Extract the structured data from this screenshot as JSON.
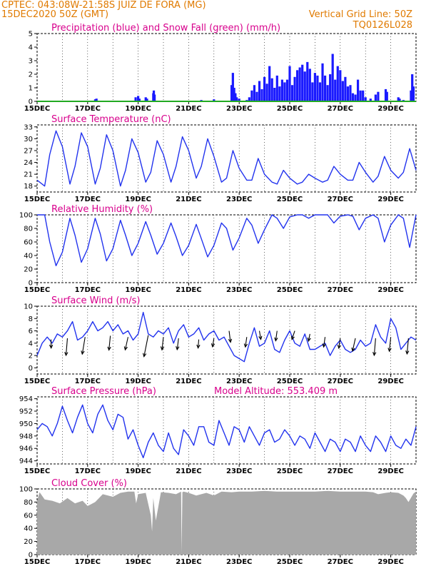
{
  "header": {
    "line1": "CPTEC:  043:08W-21:58S  JUIZ DE FORA (MG)",
    "line2": "15DEC2020 50Z (GMT)",
    "grid_note": "Vertical Grid Line: 50Z",
    "code": "TQ0126L028"
  },
  "colors": {
    "header": "#e07a00",
    "title": "#d8008c",
    "precip": "#1a1aff",
    "snow": "#22aa22",
    "line": "#2233ee",
    "arrow": "#000000",
    "cloud": "#a8a8a8"
  },
  "x_tick_labels": [
    "15DEC",
    "17DEC",
    "19DEC",
    "21DEC",
    "23DEC",
    "25DEC",
    "27DEC",
    "29DEC"
  ],
  "chart_data": [
    {
      "type": "bar",
      "title": "Precipitation (blue) and Snow Fall (green) (mm/h)",
      "ylim": [
        0,
        5
      ],
      "yticks": [
        0,
        1,
        2,
        3,
        4,
        5
      ],
      "x_range_days": [
        15,
        30
      ],
      "series": [
        {
          "name": "Precipitation",
          "x": [
            17.3,
            17.35,
            18.9,
            19.0,
            19.05,
            19.3,
            19.35,
            19.6,
            19.62,
            19.65,
            21.5,
            22.0,
            22.7,
            22.75,
            22.8,
            22.85,
            22.9,
            23.0,
            23.3,
            23.4,
            23.5,
            23.6,
            23.7,
            23.8,
            23.9,
            24.0,
            24.1,
            24.2,
            24.3,
            24.4,
            24.5,
            24.6,
            24.7,
            24.8,
            24.9,
            25.0,
            25.1,
            25.2,
            25.3,
            25.4,
            25.5,
            25.6,
            25.7,
            25.8,
            25.9,
            26.0,
            26.1,
            26.2,
            26.3,
            26.4,
            26.5,
            26.6,
            26.7,
            26.8,
            26.9,
            27.0,
            27.1,
            27.2,
            27.3,
            27.4,
            27.5,
            27.6,
            27.7,
            27.8,
            27.9,
            28.0,
            28.2,
            28.4,
            28.5,
            28.8,
            28.85,
            29.3,
            29.35,
            29.5,
            29.8,
            29.85,
            29.9
          ],
          "values": [
            0.15,
            0.2,
            0.3,
            0.4,
            0.2,
            0.3,
            0.2,
            0.6,
            0.8,
            0.5,
            0.1,
            0.15,
            1.2,
            2.1,
            1.0,
            0.6,
            0.3,
            0.2,
            0.1,
            0.3,
            0.8,
            1.2,
            0.7,
            1.5,
            0.9,
            1.8,
            1.3,
            2.6,
            1.7,
            1.0,
            1.9,
            1.1,
            1.6,
            1.4,
            1.6,
            2.6,
            1.2,
            1.8,
            2.3,
            2.5,
            2.7,
            2.2,
            2.9,
            2.4,
            1.4,
            2.1,
            1.9,
            1.4,
            2.8,
            1.9,
            1.2,
            2.0,
            3.5,
            1.6,
            2.6,
            2.3,
            1.5,
            1.8,
            1.1,
            1.2,
            0.6,
            0.5,
            1.6,
            0.8,
            0.8,
            0.3,
            0.2,
            0.5,
            0.7,
            0.9,
            0.7,
            0.3,
            0.2,
            0.1,
            0.8,
            2.0,
            1.1
          ]
        },
        {
          "name": "Snow Fall",
          "x": [
            15,
            30
          ],
          "values": [
            0,
            0
          ]
        }
      ]
    },
    {
      "type": "line",
      "title": "Surface Temperature (nC)",
      "ylim": [
        16.5,
        33.5
      ],
      "yticks": [
        18,
        21,
        24,
        27,
        30,
        33
      ],
      "x": [
        15.0,
        15.3,
        15.5,
        15.75,
        16.0,
        16.3,
        16.5,
        16.75,
        17.0,
        17.3,
        17.5,
        17.75,
        18.0,
        18.3,
        18.5,
        18.75,
        19.0,
        19.3,
        19.5,
        19.75,
        20.0,
        20.3,
        20.5,
        20.75,
        21.0,
        21.3,
        21.5,
        21.75,
        22.0,
        22.3,
        22.5,
        22.75,
        23.0,
        23.3,
        23.5,
        23.75,
        24.0,
        24.3,
        24.5,
        24.75,
        25.0,
        25.3,
        25.5,
        25.75,
        26.0,
        26.3,
        26.5,
        26.75,
        27.0,
        27.3,
        27.5,
        27.75,
        28.0,
        28.3,
        28.5,
        28.75,
        29.0,
        29.3,
        29.5,
        29.75,
        30.0
      ],
      "values": [
        19.5,
        18.0,
        26.0,
        32.0,
        28.0,
        18.5,
        23.0,
        31.5,
        28.0,
        18.5,
        22.5,
        31.0,
        27.0,
        18.0,
        22.0,
        30.0,
        26.5,
        19.0,
        21.5,
        29.5,
        26.0,
        19.0,
        23.0,
        30.5,
        27.0,
        20.0,
        23.0,
        30.0,
        25.5,
        19.0,
        20.0,
        27.0,
        22.5,
        19.5,
        19.5,
        25.0,
        21.0,
        19.0,
        18.5,
        22.0,
        20.0,
        18.5,
        19.0,
        21.0,
        20.0,
        19.0,
        19.5,
        23.0,
        21.0,
        19.5,
        19.5,
        24.0,
        21.5,
        19.0,
        20.5,
        25.5,
        22.0,
        20.0,
        21.5,
        27.5,
        22.0
      ]
    },
    {
      "type": "line",
      "title": "Relative Humidity (%)",
      "ylim": [
        0,
        100
      ],
      "yticks": [
        0,
        20,
        40,
        60,
        80,
        100
      ],
      "x": [
        15.0,
        15.3,
        15.5,
        15.75,
        16.0,
        16.3,
        16.5,
        16.75,
        17.0,
        17.3,
        17.5,
        17.75,
        18.0,
        18.3,
        18.5,
        18.75,
        19.0,
        19.3,
        19.5,
        19.75,
        20.0,
        20.3,
        20.5,
        20.75,
        21.0,
        21.3,
        21.5,
        21.75,
        22.0,
        22.3,
        22.5,
        22.75,
        23.0,
        23.3,
        23.5,
        23.75,
        24.0,
        24.3,
        24.5,
        24.75,
        25.0,
        25.3,
        25.5,
        25.75,
        26.0,
        26.3,
        26.5,
        26.75,
        27.0,
        27.3,
        27.5,
        27.75,
        28.0,
        28.3,
        28.5,
        28.75,
        29.0,
        29.3,
        29.5,
        29.75,
        30.0
      ],
      "values": [
        100,
        100,
        60,
        25,
        45,
        95,
        70,
        30,
        50,
        95,
        72,
        32,
        50,
        92,
        70,
        40,
        58,
        90,
        70,
        42,
        58,
        88,
        68,
        40,
        55,
        86,
        65,
        38,
        55,
        88,
        80,
        48,
        66,
        95,
        85,
        58,
        78,
        100,
        95,
        80,
        97,
        100,
        100,
        95,
        100,
        100,
        100,
        88,
        98,
        100,
        98,
        78,
        95,
        100,
        95,
        60,
        85,
        100,
        95,
        52,
        100
      ]
    },
    {
      "type": "line",
      "title": "Surface Wind (m/s)",
      "ylim": [
        -1,
        10
      ],
      "yticks": [
        0,
        2,
        4,
        6,
        8,
        10
      ],
      "x": [
        15.0,
        15.2,
        15.4,
        15.6,
        15.8,
        16.0,
        16.2,
        16.4,
        16.6,
        16.8,
        17.0,
        17.2,
        17.4,
        17.6,
        17.8,
        18.0,
        18.2,
        18.4,
        18.6,
        18.8,
        19.0,
        19.2,
        19.4,
        19.6,
        19.8,
        20.0,
        20.2,
        20.4,
        20.6,
        20.8,
        21.0,
        21.2,
        21.4,
        21.6,
        21.8,
        22.0,
        22.2,
        22.4,
        22.6,
        22.8,
        23.0,
        23.2,
        23.4,
        23.6,
        23.8,
        24.0,
        24.2,
        24.4,
        24.6,
        24.8,
        25.0,
        25.2,
        25.4,
        25.6,
        25.8,
        26.0,
        26.2,
        26.4,
        26.6,
        26.8,
        27.0,
        27.2,
        27.4,
        27.6,
        27.8,
        28.0,
        28.2,
        28.4,
        28.6,
        28.8,
        29.0,
        29.2,
        29.4,
        29.6,
        29.8,
        30.0
      ],
      "values": [
        2.0,
        4.0,
        5.0,
        4.0,
        5.5,
        5.0,
        6.0,
        7.5,
        4.5,
        5.0,
        6.0,
        7.5,
        6.0,
        6.5,
        7.5,
        6.0,
        7.0,
        5.5,
        6.0,
        4.5,
        5.5,
        9.0,
        5.5,
        5.0,
        6.0,
        5.5,
        6.5,
        4.0,
        6.0,
        7.0,
        5.0,
        5.5,
        6.5,
        4.5,
        5.5,
        6.0,
        4.5,
        5.0,
        3.5,
        2.0,
        1.5,
        1.0,
        4.0,
        6.5,
        3.5,
        4.0,
        6.0,
        3.0,
        2.5,
        4.5,
        6.0,
        4.0,
        3.5,
        5.5,
        3.0,
        3.0,
        3.5,
        4.0,
        2.0,
        3.5,
        4.5,
        3.0,
        2.5,
        3.0,
        4.5,
        3.5,
        4.0,
        7.0,
        5.0,
        4.0,
        8.0,
        6.5,
        3.0,
        4.0,
        5.0,
        4.5
      ]
    },
    {
      "type": "line",
      "title": "Surface Pressure (hPa)",
      "subtitle": "Model Altitude: 553.409  m",
      "ylim": [
        943.5,
        954.3
      ],
      "yticks": [
        944,
        946,
        948,
        950,
        952,
        954
      ],
      "x": [
        15.0,
        15.2,
        15.4,
        15.6,
        15.8,
        16.0,
        16.2,
        16.4,
        16.6,
        16.8,
        17.0,
        17.2,
        17.4,
        17.6,
        17.8,
        18.0,
        18.2,
        18.4,
        18.6,
        18.8,
        19.0,
        19.2,
        19.4,
        19.6,
        19.8,
        20.0,
        20.2,
        20.4,
        20.6,
        20.8,
        21.0,
        21.2,
        21.4,
        21.6,
        21.8,
        22.0,
        22.2,
        22.4,
        22.6,
        22.8,
        23.0,
        23.2,
        23.4,
        23.6,
        23.8,
        24.0,
        24.2,
        24.4,
        24.6,
        24.8,
        25.0,
        25.2,
        25.4,
        25.6,
        25.8,
        26.0,
        26.2,
        26.4,
        26.6,
        26.8,
        27.0,
        27.2,
        27.4,
        27.6,
        27.8,
        28.0,
        28.2,
        28.4,
        28.6,
        28.8,
        29.0,
        29.2,
        29.4,
        29.6,
        29.8,
        30.0
      ],
      "values": [
        949.0,
        950.0,
        949.5,
        948.0,
        950.0,
        952.8,
        950.5,
        948.5,
        951.0,
        953.0,
        950.0,
        948.5,
        951.5,
        953.0,
        950.5,
        949.0,
        951.5,
        951.0,
        947.5,
        949.0,
        946.5,
        944.5,
        947.0,
        948.5,
        946.5,
        945.5,
        948.5,
        946.0,
        945.0,
        949.0,
        948.0,
        946.5,
        949.5,
        949.5,
        947.0,
        946.5,
        950.5,
        948.5,
        946.5,
        949.5,
        949.0,
        947.0,
        949.5,
        948.0,
        946.5,
        948.5,
        949.0,
        947.0,
        947.5,
        949.0,
        948.0,
        946.5,
        948.0,
        947.5,
        946.0,
        948.5,
        947.0,
        945.5,
        947.5,
        947.0,
        945.5,
        947.5,
        947.0,
        945.5,
        948.0,
        946.5,
        945.5,
        948.0,
        947.0,
        945.5,
        948.0,
        946.5,
        946.0,
        947.5,
        946.5,
        949.5
      ]
    },
    {
      "type": "area",
      "title": "Cloud Cover (%)",
      "ylim": [
        0,
        100
      ],
      "yticks": [
        0,
        20,
        40,
        60,
        80,
        100
      ],
      "x": [
        15.0,
        15.1,
        15.3,
        15.6,
        15.9,
        16.2,
        16.5,
        16.8,
        17.0,
        17.3,
        17.6,
        18.0,
        18.3,
        18.6,
        18.85,
        18.92,
        19.0,
        19.3,
        19.5,
        19.55,
        19.6,
        19.7,
        19.9,
        20.2,
        20.5,
        20.7,
        20.72,
        20.75,
        20.8,
        21.0,
        21.3,
        21.7,
        22.0,
        22.3,
        22.7,
        23.0,
        23.5,
        24.0,
        24.5,
        25.0,
        25.5,
        26.0,
        26.5,
        27.0,
        27.5,
        28.0,
        28.3,
        28.5,
        28.8,
        29.0,
        29.3,
        29.5,
        29.6,
        29.7,
        29.9,
        30.0
      ],
      "values": [
        82,
        95,
        84,
        82,
        78,
        86,
        78,
        82,
        74,
        80,
        92,
        88,
        94,
        96,
        96,
        78,
        92,
        94,
        60,
        35,
        86,
        52,
        95,
        94,
        92,
        96,
        2,
        95,
        96,
        94,
        90,
        94,
        90,
        96,
        95,
        96,
        96,
        97,
        96,
        96,
        96,
        96,
        97,
        96,
        96,
        96,
        95,
        92,
        94,
        95,
        94,
        90,
        86,
        80,
        93,
        96
      ]
    }
  ]
}
